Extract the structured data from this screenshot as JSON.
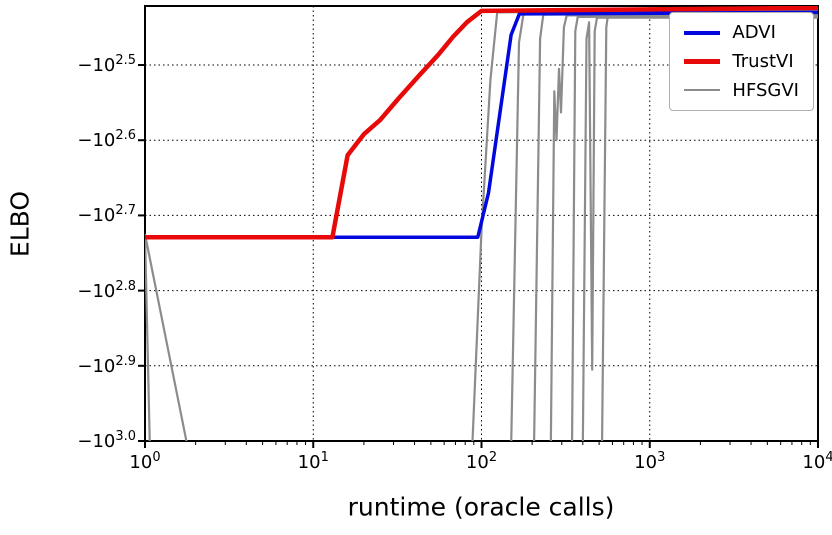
{
  "chart_data": {
    "type": "line",
    "title": "",
    "xlabel": "runtime (oracle calls)",
    "ylabel": "ELBO",
    "x_scale": "log10",
    "xlim": [
      1,
      10000
    ],
    "x_ticks": [
      {
        "base": "10",
        "exp": "0",
        "value": 1
      },
      {
        "base": "10",
        "exp": "1",
        "value": 10
      },
      {
        "base": "10",
        "exp": "2",
        "value": 100
      },
      {
        "base": "10",
        "exp": "3",
        "value": 1000
      },
      {
        "base": "10",
        "exp": "4",
        "value": 10000
      }
    ],
    "y_scale": "negative log: plotted value = -10^exp",
    "ylim_exp": [
      2.4215,
      3.0
    ],
    "y_ticks": [
      {
        "base": "−10",
        "exp": "2.5",
        "value": 2.5
      },
      {
        "base": "−10",
        "exp": "2.6",
        "value": 2.6
      },
      {
        "base": "−10",
        "exp": "2.7",
        "value": 2.7
      },
      {
        "base": "−10",
        "exp": "2.8",
        "value": 2.8
      },
      {
        "base": "−10",
        "exp": "2.9",
        "value": 2.9
      },
      {
        "base": "−10",
        "exp": "3.0",
        "value": 3.0
      }
    ],
    "grid": "dotted black, major ticks both axes",
    "legend_position": "upper right",
    "spine_color": "#000000",
    "background": "#ffffff",
    "points_format": "[runtime_oracle_calls, exponent e] where ELBO = -10^e",
    "series": [
      {
        "name": "ADVI",
        "color": "#0008dd",
        "lw": 3.5,
        "points": [
          [
            1,
            2.729
          ],
          [
            95,
            2.729
          ],
          [
            110,
            2.67
          ],
          [
            150,
            2.46
          ],
          [
            168,
            2.432
          ],
          [
            10000,
            2.43
          ]
        ]
      },
      {
        "name": "TrustVI",
        "color": "#e80909",
        "lw": 4.5,
        "points": [
          [
            1,
            2.729
          ],
          [
            13,
            2.729
          ],
          [
            16,
            2.62
          ],
          [
            20,
            2.592
          ],
          [
            25,
            2.573
          ],
          [
            32,
            2.545
          ],
          [
            43,
            2.513
          ],
          [
            55,
            2.487
          ],
          [
            68,
            2.462
          ],
          [
            82,
            2.443
          ],
          [
            100,
            2.428
          ],
          [
            10000,
            2.424
          ]
        ]
      },
      {
        "name": "HFSGVI",
        "color": "#8c8c8c",
        "lw": 2.2,
        "runs": [
          [
            [
              1,
              2.725
            ],
            [
              1.07,
              3.01
            ]
          ],
          [
            [
              1,
              2.725
            ],
            [
              1.8,
              3.01
            ]
          ],
          [
            [
              88,
              3.01
            ],
            [
              100,
              2.72
            ],
            [
              113,
              2.52
            ],
            [
              124,
              2.43
            ],
            [
              10000,
              2.427
            ]
          ],
          [
            [
              150,
              3.01
            ],
            [
              167,
              2.47
            ],
            [
              178,
              2.431
            ],
            [
              10000,
              2.429
            ]
          ],
          [
            [
              205,
              3.01
            ],
            [
              223,
              2.465
            ],
            [
              233,
              2.433
            ],
            [
              10000,
              2.431
            ]
          ],
          [
            [
              258,
              3.01
            ],
            [
              271,
              2.535
            ],
            [
              279,
              2.6
            ],
            [
              289,
              2.505
            ],
            [
              297,
              2.563
            ],
            [
              309,
              2.45
            ],
            [
              321,
              2.434
            ],
            [
              10000,
              2.433
            ]
          ],
          [
            [
              345,
              3.01
            ],
            [
              361,
              2.455
            ],
            [
              373,
              2.436
            ],
            [
              10000,
              2.435
            ]
          ],
          [
            [
              400,
              3.01
            ],
            [
              421,
              2.465
            ],
            [
              436,
              2.443
            ],
            [
              455,
              2.905
            ],
            [
              471,
              2.455
            ],
            [
              486,
              2.437
            ],
            [
              10000,
              2.437
            ]
          ],
          [
            [
              520,
              3.01
            ],
            [
              552,
              2.45
            ],
            [
              567,
              2.43
            ],
            [
              10000,
              2.428
            ]
          ]
        ]
      }
    ]
  }
}
